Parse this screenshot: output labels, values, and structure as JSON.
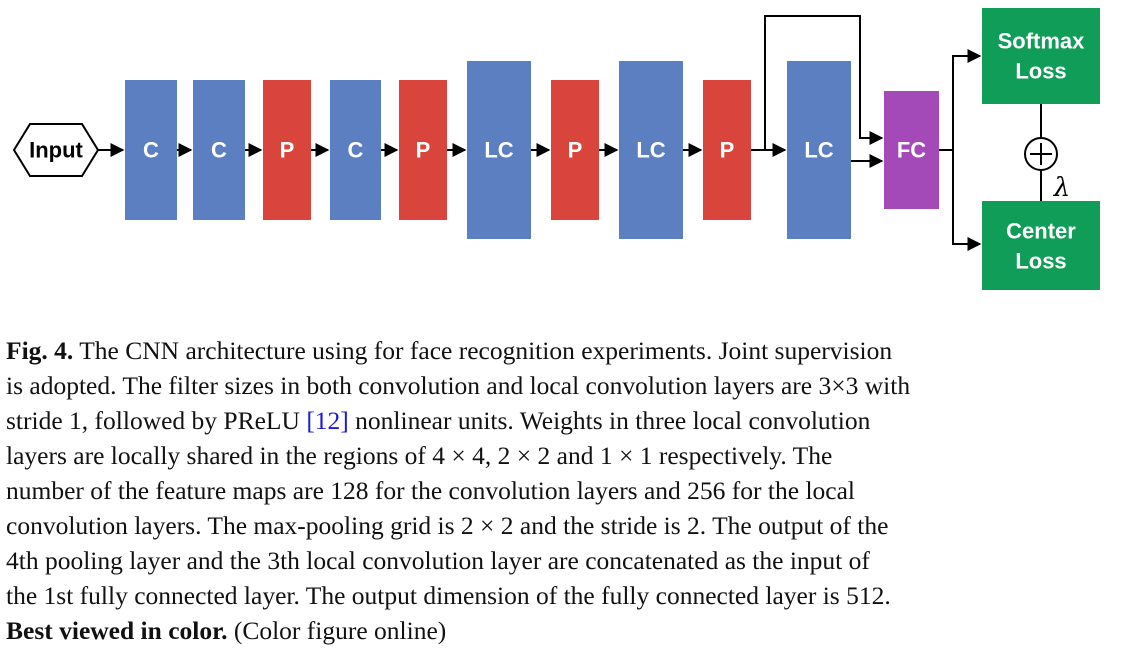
{
  "diagram": {
    "input_label": "Input",
    "blocks": [
      {
        "label": "C",
        "kind": "conv"
      },
      {
        "label": "C",
        "kind": "conv"
      },
      {
        "label": "P",
        "kind": "pool"
      },
      {
        "label": "C",
        "kind": "conv"
      },
      {
        "label": "P",
        "kind": "pool"
      },
      {
        "label": "LC",
        "kind": "local-conv"
      },
      {
        "label": "P",
        "kind": "pool"
      },
      {
        "label": "LC",
        "kind": "local-conv"
      },
      {
        "label": "P",
        "kind": "pool"
      },
      {
        "label": "LC",
        "kind": "local-conv"
      },
      {
        "label": "FC",
        "kind": "fc"
      }
    ],
    "softmax_label": [
      "Softmax",
      "Loss"
    ],
    "center_label": [
      "Center",
      "Loss"
    ],
    "lambda_label": "λ",
    "colors": {
      "conv": "#5b7fc0",
      "pool": "#d9453d",
      "fc": "#a34ab8",
      "loss": "#0f9d58",
      "line": "#000000"
    }
  },
  "caption": {
    "fig_label": "Fig. 4.",
    "lines": [
      " The CNN architecture using for face recognition experiments. Joint supervision",
      "is adopted. The filter sizes in both convolution and local convolution layers are 3×3 with",
      "stride 1, followed by PReLU ",
      "[12]",
      " nonlinear units. Weights in three local convolution",
      "layers are locally shared in the regions of 4 × 4, 2 × 2 and 1 × 1 respectively. The",
      "number of the feature maps are 128 for the convolution layers and 256 for the local",
      "convolution layers. The max-pooling grid is 2 × 2 and the stride is 2. The output of the",
      "4th pooling layer and the 3th local convolution layer are concatenated as the input of",
      "the 1st fully connected layer. The output dimension of the fully connected layer is 512."
    ],
    "best_viewed": "Best viewed in color.",
    "color_note": " (Color figure online)"
  }
}
